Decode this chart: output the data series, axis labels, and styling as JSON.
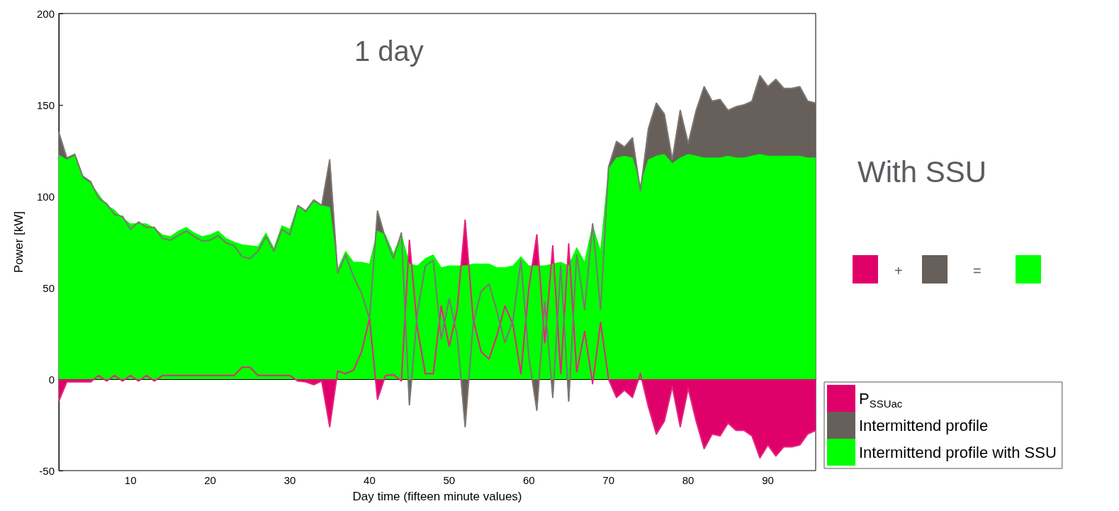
{
  "chart_data": {
    "type": "area",
    "xlabel": "Day time (fifteen minute values)",
    "ylabel": "Power [kW]",
    "annotations": [
      "1 day",
      "With SSU",
      "+",
      "="
    ],
    "x": [
      1,
      2,
      3,
      4,
      5,
      6,
      7,
      8,
      9,
      10,
      11,
      12,
      13,
      14,
      15,
      16,
      17,
      18,
      19,
      20,
      21,
      22,
      23,
      24,
      25,
      26,
      27,
      28,
      29,
      30,
      31,
      32,
      33,
      34,
      35,
      36,
      37,
      38,
      39,
      40,
      41,
      42,
      43,
      44,
      45,
      46,
      47,
      48,
      49,
      50,
      51,
      52,
      53,
      54,
      55,
      56,
      57,
      58,
      59,
      60,
      61,
      62,
      63,
      64,
      65,
      66,
      67,
      68,
      69,
      70,
      71,
      72,
      73,
      74,
      75,
      76,
      77,
      78,
      79,
      80,
      81,
      82,
      83,
      84,
      85,
      86,
      87,
      88,
      89,
      90,
      91,
      92,
      93,
      94,
      95,
      96
    ],
    "xlim": [
      1,
      96
    ],
    "xticks": [
      10,
      20,
      30,
      40,
      50,
      60,
      70,
      80,
      90
    ],
    "ylim": [
      -50,
      200
    ],
    "yticks": [
      -50,
      0,
      50,
      100,
      150,
      200
    ],
    "legend": "bottom right",
    "series": [
      {
        "name": "P$_{SSUac}$",
        "color": "#e0006a",
        "values": [
          -12,
          -1.5,
          -1.5,
          -1.5,
          -1.5,
          2,
          -1,
          2,
          -1,
          2,
          -1,
          2,
          -1,
          2,
          2,
          2,
          2,
          2,
          2,
          2,
          2,
          2,
          2,
          6.5,
          6.5,
          2,
          2,
          2,
          2,
          2,
          -1,
          -1.5,
          -3,
          -1,
          -26,
          4.5,
          3,
          5,
          15,
          33,
          -11,
          2,
          2.5,
          -1,
          76,
          28,
          3,
          3,
          40,
          18,
          38,
          87,
          33,
          15,
          11,
          24,
          40,
          30,
          3,
          50,
          79,
          20,
          73,
          3,
          74,
          4,
          26,
          -2.5,
          31,
          0,
          -10,
          -6,
          -10,
          3,
          -15,
          -30,
          -23,
          -4,
          -26,
          -5,
          -23,
          -38,
          -30,
          -31,
          -24,
          -28,
          -28,
          -31,
          -43,
          -36,
          -42,
          -37,
          -37,
          -36,
          -30,
          -28
        ]
      },
      {
        "name": "Intermittend profile",
        "color": "#675f59",
        "values": [
          135,
          121,
          123,
          111,
          108,
          99,
          96,
          90,
          89,
          82,
          86,
          83,
          83,
          77,
          76,
          78.5,
          81,
          78,
          75.5,
          76,
          78.5,
          74.5,
          73,
          67,
          66,
          70,
          78,
          70,
          82,
          79,
          95,
          92,
          98,
          95,
          120,
          58,
          68,
          56,
          47,
          33,
          92,
          77,
          66,
          80,
          -14,
          36,
          62,
          65,
          22,
          44,
          24,
          -26,
          30,
          48,
          52,
          37,
          20,
          32,
          65,
          12,
          -17,
          42,
          -10,
          62,
          -12,
          68,
          38,
          85,
          38,
          116,
          130,
          127,
          132,
          103,
          137,
          151,
          145,
          120,
          147,
          129,
          147,
          160,
          152,
          153,
          147,
          149,
          150,
          152,
          166,
          160,
          164,
          159,
          159,
          160,
          152,
          151
        ]
      },
      {
        "name": "Intermittend profile with SSU",
        "color": "#00ff00",
        "values": [
          122.5,
          120,
          122,
          110,
          107,
          101,
          95,
          92.5,
          88,
          85,
          85,
          85,
          82.5,
          79,
          78,
          81,
          83,
          80,
          78,
          79,
          81,
          77,
          75,
          73.5,
          73,
          72.5,
          80,
          71.5,
          84,
          82,
          95,
          91,
          97,
          95,
          94,
          60,
          70,
          64,
          64,
          63,
          81,
          79,
          68.5,
          79,
          63,
          62,
          66,
          68,
          61,
          62,
          62,
          62,
          63,
          63,
          63,
          61,
          61,
          62,
          67,
          62,
          62,
          62,
          63,
          64,
          62,
          72,
          64,
          84,
          70,
          115,
          121,
          122,
          121,
          106,
          120,
          122,
          123,
          118,
          121,
          123,
          122,
          121,
          121,
          121,
          122,
          121,
          121,
          122,
          123,
          122,
          122,
          122,
          122,
          122,
          121,
          121
        ]
      }
    ]
  }
}
